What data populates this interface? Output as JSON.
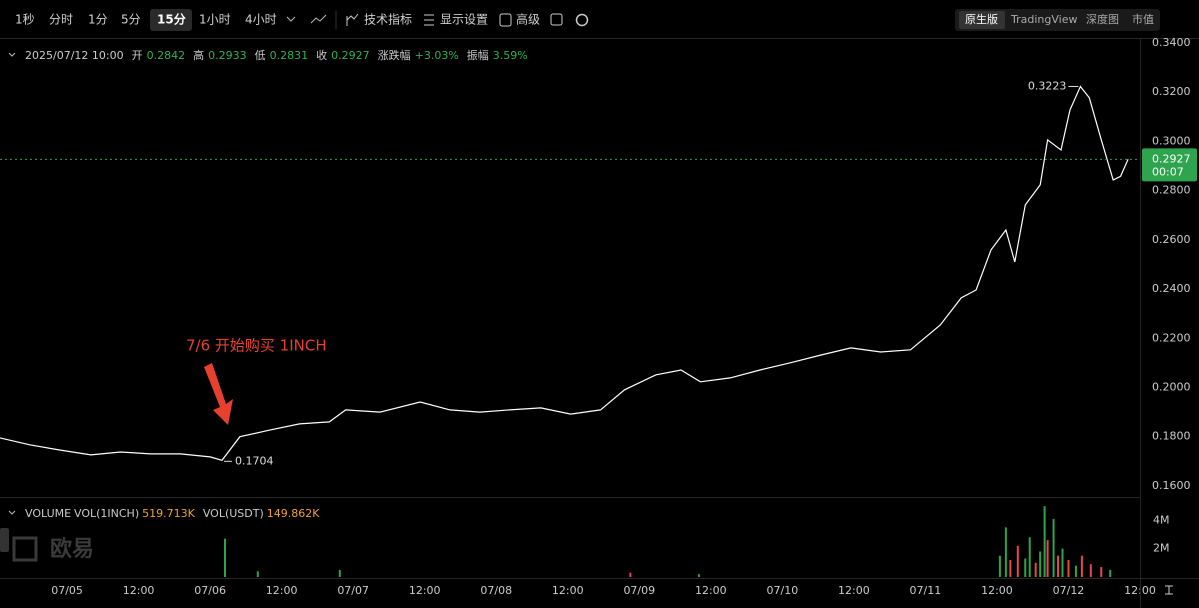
{
  "toolbar": {
    "intervals": [
      "1秒",
      "分时",
      "1分",
      "5分",
      "15分",
      "1小时",
      "4小时"
    ],
    "active_interval": 4,
    "tools": [
      "技术指标",
      "显示设置",
      "高级"
    ],
    "views": [
      "原生版",
      "TradingView",
      "深度图",
      "市值"
    ],
    "active_view": 0
  },
  "info_bar": {
    "datetime": "2025/07/12 10:00",
    "fields": [
      {
        "label": "开",
        "value": "0.2842"
      },
      {
        "label": "高",
        "value": "0.2933"
      },
      {
        "label": "低",
        "value": "0.2831"
      },
      {
        "label": "收",
        "value": "0.2927"
      },
      {
        "label": "涨跌幅",
        "value": "+3.03%"
      },
      {
        "label": "振幅",
        "value": "3.59%"
      }
    ]
  },
  "watermark": "欧易",
  "chart_data": [
    {
      "type": "line",
      "color": "#ffffff",
      "annotation": "7/6 开始购买 1INCH",
      "x": [
        -11.25,
        -6.25,
        -1.25,
        4,
        9,
        14,
        19,
        24,
        26,
        29,
        34,
        39,
        44,
        46.75,
        52.5,
        59.25,
        64.25,
        69.25,
        74.25,
        79.5,
        84.5,
        89.5,
        93.5,
        98.75,
        103,
        106.25,
        111.25,
        116.25,
        121.25,
        126.5,
        131.5,
        136.5,
        141.5,
        146.5,
        150,
        152.5,
        155,
        157.5,
        159,
        160.75,
        163.25,
        164.5,
        166.75,
        168.25,
        170,
        171.5,
        173.5,
        175.5,
        176.75,
        178
      ],
      "values": [
        0.1795,
        0.1767,
        0.1746,
        0.1726,
        0.1738,
        0.173,
        0.173,
        0.1718,
        0.1704,
        0.18,
        0.1827,
        0.1852,
        0.186,
        0.1909,
        0.19,
        0.1941,
        0.1909,
        0.19,
        0.1909,
        0.1917,
        0.1892,
        0.1909,
        0.199,
        0.2051,
        0.2071,
        0.2023,
        0.2039,
        0.2071,
        0.21,
        0.2132,
        0.2161,
        0.2144,
        0.2153,
        0.2254,
        0.2364,
        0.2396,
        0.2559,
        0.264,
        0.251,
        0.2742,
        0.2823,
        0.3006,
        0.2965,
        0.3128,
        0.3223,
        0.3177,
        0.3006,
        0.2843,
        0.2858,
        0.2927
      ],
      "high": {
        "x": 170,
        "value": 0.3223
      },
      "low": {
        "x": 26,
        "value": 0.1704
      },
      "last": {
        "value": 0.2927,
        "countdown": "00:07",
        "color": "#2ea44f"
      },
      "xlim": [
        -11.25,
        180
      ],
      "ylim": [
        0.1555,
        0.342
      ],
      "xticks": [
        {
          "value": 0,
          "label": "07/05"
        },
        {
          "value": 12,
          "label": "12:00"
        },
        {
          "value": 24,
          "label": "07/06"
        },
        {
          "value": 36,
          "label": "12:00"
        },
        {
          "value": 48,
          "label": "07/07"
        },
        {
          "value": 60,
          "label": "12:00"
        },
        {
          "value": 72,
          "label": "07/08"
        },
        {
          "value": 84,
          "label": "12:00"
        },
        {
          "value": 96,
          "label": "07/09"
        },
        {
          "value": 108,
          "label": "12:00"
        },
        {
          "value": 120,
          "label": "07/10"
        },
        {
          "value": 132,
          "label": "12:00"
        },
        {
          "value": 144,
          "label": "07/11"
        },
        {
          "value": 156,
          "label": "12:00"
        },
        {
          "value": 168,
          "label": "07/12"
        },
        {
          "value": 180,
          "label": "12:00"
        }
      ],
      "yticks": [
        {
          "value": 0.16,
          "label": "0.1600"
        },
        {
          "value": 0.18,
          "label": "0.1800"
        },
        {
          "value": 0.2,
          "label": "0.2000"
        },
        {
          "value": 0.22,
          "label": "0.2200"
        },
        {
          "value": 0.24,
          "label": "0.2400"
        },
        {
          "value": 0.26,
          "label": "0.2600"
        },
        {
          "value": 0.28,
          "label": "0.2800"
        },
        {
          "value": 0.3,
          "label": "0.3000"
        },
        {
          "value": 0.32,
          "label": "0.3200"
        },
        {
          "value": 0.34,
          "label": "0.3400"
        }
      ]
    },
    {
      "type": "bar",
      "title": "VOLUME",
      "fields": [
        {
          "label": "VOL(1INCH)",
          "value": "519.713K"
        },
        {
          "label": "VOL(USDT)",
          "value": "149.862K"
        }
      ],
      "x": [
        26.5,
        32,
        45.75,
        94.5,
        106,
        156.5,
        157.5,
        158.25,
        159.5,
        160.75,
        161.5,
        162.5,
        163.25,
        164,
        164.5,
        165.5,
        166.25,
        167,
        168,
        169.25,
        170.25,
        171.75,
        173.5,
        175
      ],
      "values": [
        2700000,
        400000,
        500000,
        300000,
        200000,
        1500000,
        3500000,
        1200000,
        2200000,
        1300000,
        2800000,
        1000000,
        1800000,
        5000000,
        2600000,
        4100000,
        1500000,
        2000000,
        1200000,
        800000,
        1500000,
        900000,
        700000,
        500000
      ],
      "colors": [
        "#2ea44f",
        "#2ea44f",
        "#2ea44f",
        "#e5484d",
        "#2ea44f",
        "#2ea44f",
        "#2ea44f",
        "#e5484d",
        "#e5484d",
        "#2ea44f",
        "#2ea44f",
        "#e5484d",
        "#2ea44f",
        "#2ea44f",
        "#e5484d",
        "#2ea44f",
        "#e5484d",
        "#2ea44f",
        "#e5484d",
        "#2ea44f",
        "#e5484d",
        "#e5484d",
        "#e5484d",
        "#2ea44f"
      ],
      "ylim": [
        0,
        5430000
      ],
      "yticks": [
        {
          "value": 2000000,
          "label": "2M"
        },
        {
          "value": 4000000,
          "label": "4M"
        }
      ]
    }
  ]
}
